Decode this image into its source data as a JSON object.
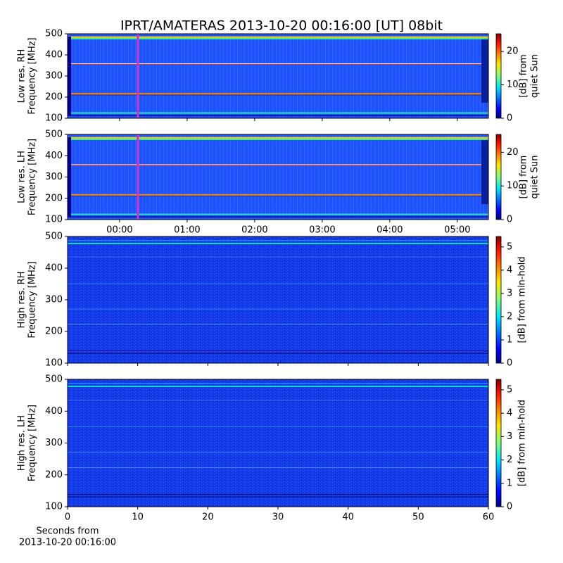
{
  "title": "IPRT/AMATERAS 2013-10-20 00:16:00 [UT]   08bit",
  "chart_data": [
    {
      "type": "heatmap",
      "ylabel": [
        "Low res. RH",
        "Frequency [MHz]"
      ],
      "ylim": [
        100,
        500
      ],
      "yticks": [
        100,
        200,
        300,
        400,
        500
      ],
      "xlim": [
        -0.77,
        5.46
      ],
      "marker": {
        "x": 0.27,
        "color": "#cc33cc"
      },
      "colorbar": {
        "label": [
          "[dB] from",
          "quiet Sun"
        ],
        "lim": [
          0,
          25.3
        ],
        "ticks": [
          0,
          10,
          20
        ]
      }
    },
    {
      "type": "heatmap",
      "ylabel": [
        "Low res. LH",
        "Frequency [MHz]"
      ],
      "ylim": [
        100,
        500
      ],
      "yticks": [
        100,
        200,
        300,
        400,
        500
      ],
      "xlim": [
        -0.77,
        5.46
      ],
      "xticks": [
        {
          "value": 0,
          "label": "00:00"
        },
        {
          "value": 1,
          "label": "01:00"
        },
        {
          "value": 2,
          "label": "02:00"
        },
        {
          "value": 3,
          "label": "03:00"
        },
        {
          "value": 4,
          "label": "04:00"
        },
        {
          "value": 5,
          "label": "05:00"
        }
      ],
      "marker": {
        "x": 0.27,
        "color": "#cc33cc"
      },
      "colorbar": {
        "label": [
          "[dB] from",
          "quiet Sun"
        ],
        "lim": [
          0,
          25.3
        ],
        "ticks": [
          0,
          10,
          20
        ]
      }
    },
    {
      "type": "heatmap",
      "ylabel": [
        "High res. RH",
        "Frequency [MHz]"
      ],
      "ylim": [
        100,
        500
      ],
      "yticks": [
        100,
        200,
        300,
        400,
        500
      ],
      "xlim": [
        0,
        60
      ],
      "colorbar": {
        "label": [
          "[dB] from min-hold"
        ],
        "lim": [
          0,
          5.45
        ],
        "ticks": [
          0,
          1,
          2,
          3,
          4,
          5
        ]
      }
    },
    {
      "type": "heatmap",
      "ylabel": [
        "High res. LH",
        "Frequency [MHz]"
      ],
      "ylim": [
        100,
        500
      ],
      "yticks": [
        100,
        200,
        300,
        400,
        500
      ],
      "xlim": [
        0,
        60
      ],
      "xticks": [
        0,
        10,
        20,
        30,
        40,
        50,
        60
      ],
      "xlabel": [
        "Seconds from",
        "2013-10-20 00:16:00"
      ],
      "colorbar": {
        "label": [
          "[dB] from min-hold"
        ],
        "lim": [
          0,
          5.45
        ],
        "ticks": [
          0,
          1,
          2,
          3,
          4,
          5
        ]
      }
    }
  ]
}
